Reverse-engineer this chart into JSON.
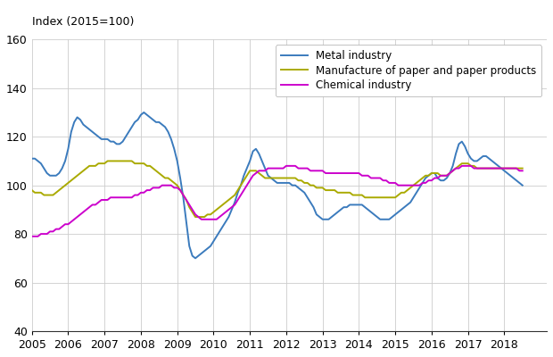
{
  "ylabel_text": "Index (2015=100)",
  "ylim": [
    40,
    160
  ],
  "yticks": [
    40,
    60,
    80,
    100,
    120,
    140,
    160
  ],
  "xlim_start": 2005.0,
  "xlim_end": 2019.17,
  "xtick_years": [
    2005,
    2006,
    2007,
    2008,
    2009,
    2010,
    2011,
    2012,
    2013,
    2014,
    2015,
    2016,
    2017,
    2018
  ],
  "series": {
    "metal": {
      "label": "Metal industry",
      "color": "#3B7BBD",
      "linewidth": 1.4
    },
    "paper": {
      "label": "Manufacture of paper and paper products",
      "color": "#AAAA00",
      "linewidth": 1.4
    },
    "chemical": {
      "label": "Chemical industry",
      "color": "#CC00CC",
      "linewidth": 1.4
    }
  },
  "metal_data": [
    111,
    111,
    110,
    109,
    107,
    105,
    104,
    104,
    104,
    105,
    107,
    110,
    115,
    122,
    126,
    128,
    127,
    125,
    124,
    123,
    122,
    121,
    120,
    119,
    119,
    119,
    118,
    118,
    117,
    117,
    118,
    120,
    122,
    124,
    126,
    127,
    129,
    130,
    129,
    128,
    127,
    126,
    126,
    125,
    124,
    122,
    119,
    115,
    110,
    103,
    95,
    85,
    75,
    71,
    70,
    71,
    72,
    73,
    74,
    75,
    77,
    79,
    81,
    83,
    85,
    87,
    90,
    93,
    97,
    100,
    104,
    107,
    110,
    114,
    115,
    113,
    110,
    107,
    104,
    103,
    102,
    101,
    101,
    101,
    101,
    101,
    100,
    100,
    99,
    98,
    97,
    95,
    93,
    91,
    88,
    87,
    86,
    86,
    86,
    87,
    88,
    89,
    90,
    91,
    91,
    92,
    92,
    92,
    92,
    92,
    91,
    90,
    89,
    88,
    87,
    86,
    86,
    86,
    86,
    87,
    88,
    89,
    90,
    91,
    92,
    93,
    95,
    97,
    99,
    101,
    103,
    104,
    105,
    105,
    103,
    102,
    102,
    103,
    105,
    108,
    113,
    117,
    118,
    116,
    113,
    111,
    110,
    110,
    111,
    112,
    112,
    111,
    110,
    109,
    108,
    107,
    106,
    105,
    104,
    103,
    102,
    101,
    100
  ],
  "paper_data": [
    98,
    97,
    97,
    97,
    96,
    96,
    96,
    96,
    97,
    98,
    99,
    100,
    101,
    102,
    103,
    104,
    105,
    106,
    107,
    108,
    108,
    108,
    109,
    109,
    109,
    110,
    110,
    110,
    110,
    110,
    110,
    110,
    110,
    110,
    109,
    109,
    109,
    109,
    108,
    108,
    107,
    106,
    105,
    104,
    103,
    103,
    102,
    101,
    100,
    98,
    96,
    94,
    91,
    89,
    87,
    87,
    87,
    87,
    88,
    88,
    89,
    90,
    91,
    92,
    93,
    94,
    95,
    96,
    98,
    100,
    102,
    104,
    106,
    106,
    106,
    105,
    104,
    103,
    103,
    103,
    103,
    103,
    103,
    103,
    103,
    103,
    103,
    103,
    102,
    102,
    101,
    101,
    100,
    100,
    99,
    99,
    99,
    98,
    98,
    98,
    98,
    97,
    97,
    97,
    97,
    97,
    96,
    96,
    96,
    96,
    95,
    95,
    95,
    95,
    95,
    95,
    95,
    95,
    95,
    95,
    95,
    96,
    97,
    97,
    98,
    99,
    100,
    101,
    102,
    103,
    104,
    104,
    105,
    105,
    105,
    104,
    104,
    104,
    105,
    106,
    107,
    108,
    109,
    109,
    109,
    108,
    108,
    107,
    107,
    107,
    107,
    107,
    107,
    107,
    107,
    107,
    107,
    107,
    107,
    107,
    107,
    107,
    107
  ],
  "chemical_data": [
    79,
    79,
    79,
    80,
    80,
    80,
    81,
    81,
    82,
    82,
    83,
    84,
    84,
    85,
    86,
    87,
    88,
    89,
    90,
    91,
    92,
    92,
    93,
    94,
    94,
    94,
    95,
    95,
    95,
    95,
    95,
    95,
    95,
    95,
    96,
    96,
    97,
    97,
    98,
    98,
    99,
    99,
    99,
    100,
    100,
    100,
    100,
    99,
    99,
    98,
    96,
    94,
    92,
    90,
    88,
    87,
    86,
    86,
    86,
    86,
    86,
    86,
    87,
    88,
    89,
    90,
    91,
    92,
    94,
    96,
    98,
    100,
    102,
    104,
    105,
    106,
    106,
    106,
    107,
    107,
    107,
    107,
    107,
    107,
    108,
    108,
    108,
    108,
    107,
    107,
    107,
    107,
    106,
    106,
    106,
    106,
    106,
    105,
    105,
    105,
    105,
    105,
    105,
    105,
    105,
    105,
    105,
    105,
    105,
    104,
    104,
    104,
    103,
    103,
    103,
    103,
    102,
    102,
    101,
    101,
    101,
    100,
    100,
    100,
    100,
    100,
    100,
    100,
    100,
    101,
    101,
    102,
    102,
    103,
    103,
    104,
    104,
    104,
    105,
    106,
    107,
    107,
    108,
    108,
    108,
    108,
    107,
    107,
    107,
    107,
    107,
    107,
    107,
    107,
    107,
    107,
    107,
    107,
    107,
    107,
    107,
    106,
    106
  ],
  "n_points": 163,
  "grid_color": "#cccccc",
  "background_color": "#ffffff"
}
